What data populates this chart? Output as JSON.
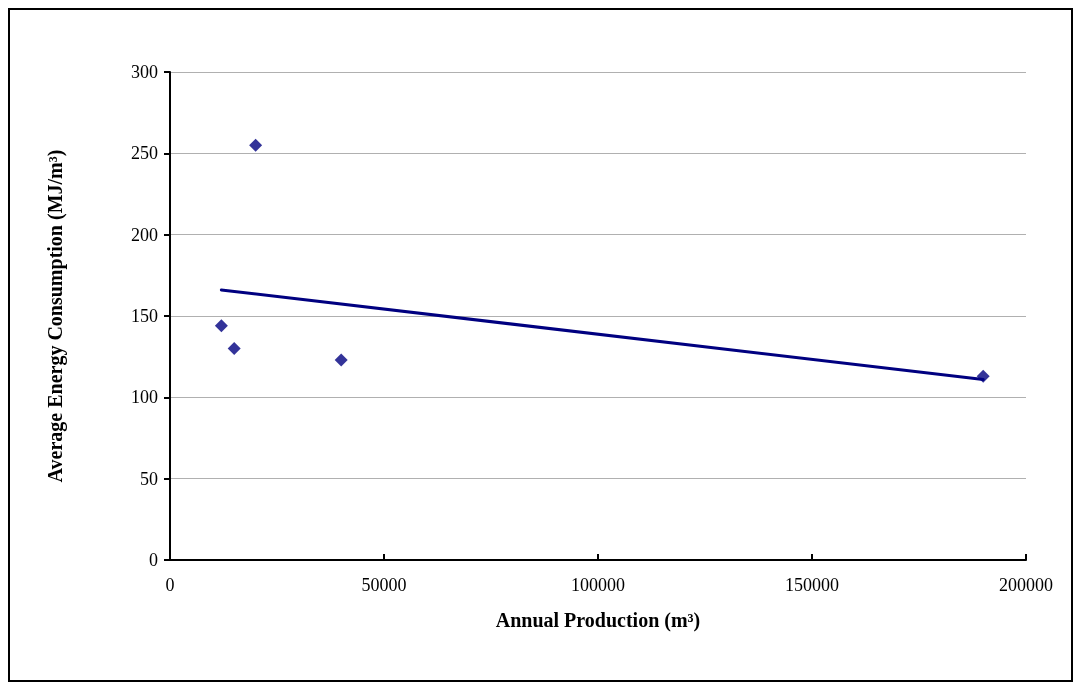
{
  "chart_data": {
    "type": "scatter",
    "xlabel": "Annual Production (m³)",
    "ylabel": "Average Energy Consumption (MJ/m³)",
    "x": [
      12000,
      15000,
      20000,
      40000,
      190000
    ],
    "series": [
      {
        "color": "#000080",
        "marker": "diamond",
        "values": [
          144,
          130,
          255,
          123,
          113
        ]
      },
      {
        "type": "line",
        "color": "#000080",
        "marker": "none",
        "line_style": "solid",
        "x": [
          12000,
          190000
        ],
        "values": [
          166,
          111
        ]
      }
    ],
    "xlim": [
      0,
      200000
    ],
    "xticks": [
      0,
      50000,
      100000,
      150000,
      200000
    ],
    "ylim": [
      0,
      300
    ],
    "yticks": [
      0,
      50,
      100,
      150,
      200,
      250,
      300
    ],
    "grid": "y"
  }
}
